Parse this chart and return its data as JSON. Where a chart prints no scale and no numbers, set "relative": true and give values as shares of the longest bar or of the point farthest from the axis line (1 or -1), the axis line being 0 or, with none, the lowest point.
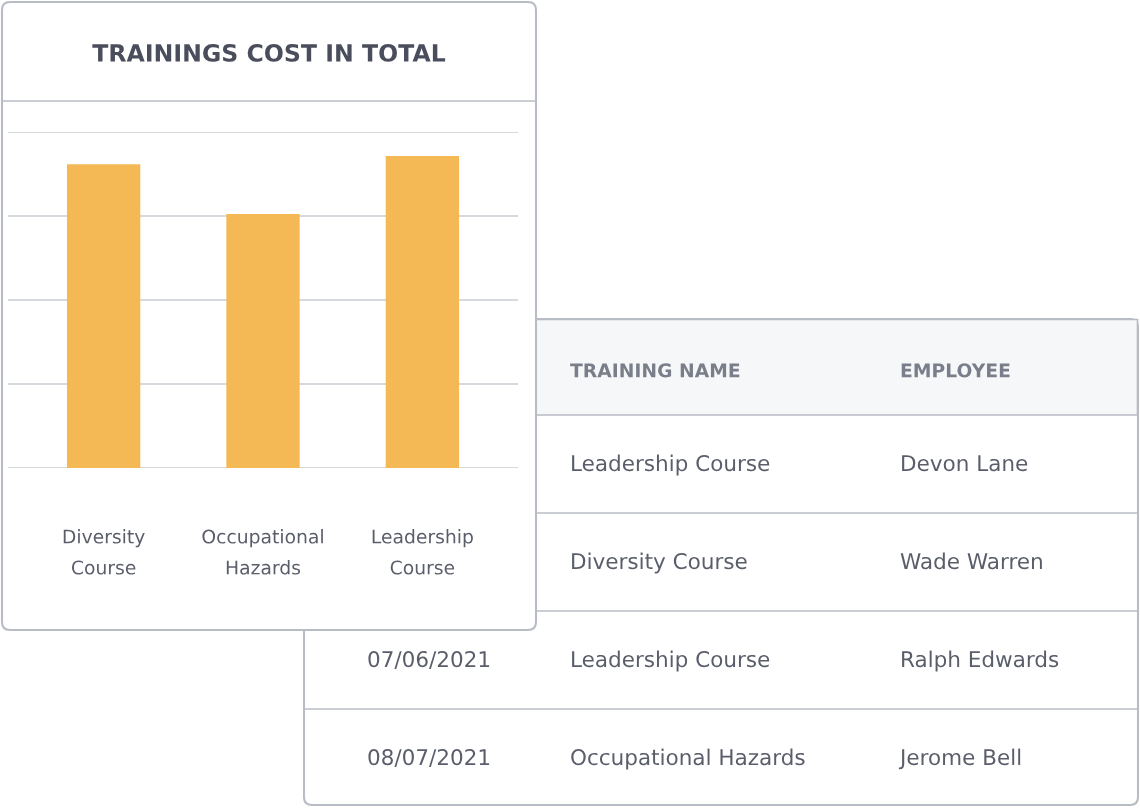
{
  "chart_data": [
    {
      "type": "bar",
      "title": "TRAININGS COST IN TOTAL",
      "categories": [
        "Diversity Course",
        "Occupational Hazards",
        "Leadership Course"
      ],
      "values": [
        0.974,
        0.814,
        1
      ],
      "color": "#f4b955",
      "relative": true,
      "grid": "y"
    },
    {
      "type": "other",
      "categories": [
        null,
        "TRAINING NAME",
        "EMPLOYEE"
      ],
      "cell_labels": [
        [
          null,
          "Leadership Course",
          "Devon Lane"
        ],
        [
          null,
          "Diversity Course",
          "Wade Warren"
        ],
        [
          "07/06/2021",
          "Leadership Course",
          "Ralph Edwards"
        ],
        [
          "08/07/2021",
          "Occupational Hazards",
          "Jerome Bell"
        ]
      ]
    }
  ]
}
